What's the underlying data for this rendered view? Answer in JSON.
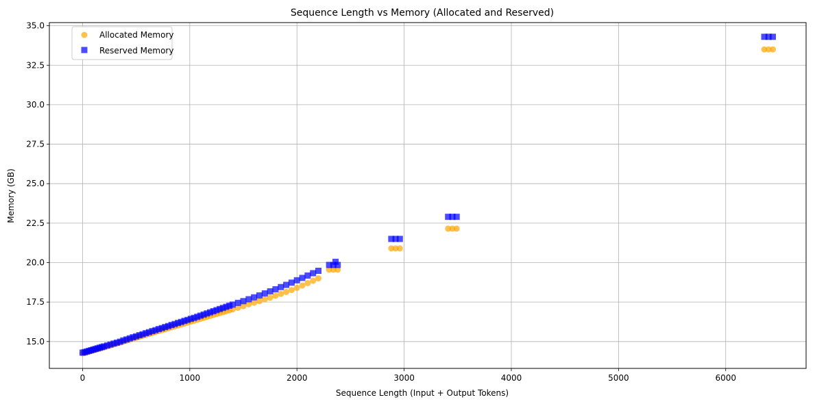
{
  "chart_data": {
    "type": "scatter",
    "title": "Sequence Length vs Memory (Allocated and Reserved)",
    "xlabel": "Sequence Length (Input + Output Tokens)",
    "ylabel": "Memory (GB)",
    "xlim": [
      -310,
      6750
    ],
    "ylim": [
      13.3,
      35.2
    ],
    "xticks": [
      0,
      1000,
      2000,
      3000,
      4000,
      5000,
      6000
    ],
    "yticks": [
      15.0,
      17.5,
      20.0,
      22.5,
      25.0,
      27.5,
      30.0,
      32.5,
      35.0
    ],
    "grid": true,
    "legend_position": "top-left",
    "series": [
      {
        "name": "Allocated Memory",
        "marker": "circle",
        "color": "#FFA500",
        "points": [
          [
            0,
            14.25
          ],
          [
            20,
            14.28
          ],
          [
            40,
            14.32
          ],
          [
            60,
            14.36
          ],
          [
            80,
            14.4
          ],
          [
            100,
            14.44
          ],
          [
            120,
            14.48
          ],
          [
            140,
            14.52
          ],
          [
            160,
            14.56
          ],
          [
            180,
            14.6
          ],
          [
            200,
            14.64
          ],
          [
            230,
            14.7
          ],
          [
            260,
            14.76
          ],
          [
            290,
            14.82
          ],
          [
            320,
            14.88
          ],
          [
            350,
            14.94
          ],
          [
            380,
            15.0
          ],
          [
            410,
            15.06
          ],
          [
            440,
            15.12
          ],
          [
            470,
            15.18
          ],
          [
            500,
            15.24
          ],
          [
            530,
            15.3
          ],
          [
            560,
            15.36
          ],
          [
            590,
            15.42
          ],
          [
            620,
            15.48
          ],
          [
            650,
            15.54
          ],
          [
            680,
            15.6
          ],
          [
            710,
            15.66
          ],
          [
            740,
            15.72
          ],
          [
            770,
            15.78
          ],
          [
            800,
            15.84
          ],
          [
            830,
            15.9
          ],
          [
            860,
            15.96
          ],
          [
            890,
            16.02
          ],
          [
            920,
            16.08
          ],
          [
            950,
            16.14
          ],
          [
            980,
            16.2
          ],
          [
            1010,
            16.26
          ],
          [
            1040,
            16.32
          ],
          [
            1070,
            16.38
          ],
          [
            1100,
            16.44
          ],
          [
            1130,
            16.5
          ],
          [
            1160,
            16.56
          ],
          [
            1190,
            16.62
          ],
          [
            1220,
            16.68
          ],
          [
            1250,
            16.74
          ],
          [
            1280,
            16.8
          ],
          [
            1310,
            16.86
          ],
          [
            1340,
            16.92
          ],
          [
            1370,
            16.98
          ],
          [
            1400,
            17.04
          ],
          [
            1450,
            17.14
          ],
          [
            1500,
            17.24
          ],
          [
            1550,
            17.36
          ],
          [
            1600,
            17.46
          ],
          [
            1650,
            17.56
          ],
          [
            1700,
            17.68
          ],
          [
            1750,
            17.78
          ],
          [
            1800,
            17.9
          ],
          [
            1850,
            18.02
          ],
          [
            1900,
            18.14
          ],
          [
            1950,
            18.26
          ],
          [
            2000,
            18.4
          ],
          [
            2050,
            18.55
          ],
          [
            2100,
            18.7
          ],
          [
            2150,
            18.85
          ],
          [
            2200,
            19.0
          ],
          [
            2300,
            19.55
          ],
          [
            2340,
            19.55
          ],
          [
            2380,
            19.55
          ],
          [
            2880,
            20.9
          ],
          [
            2920,
            20.9
          ],
          [
            2960,
            20.9
          ],
          [
            3410,
            22.15
          ],
          [
            3450,
            22.15
          ],
          [
            3490,
            22.15
          ],
          [
            6360,
            33.5
          ],
          [
            6400,
            33.5
          ],
          [
            6440,
            33.5
          ]
        ]
      },
      {
        "name": "Reserved Memory",
        "marker": "square",
        "color": "#0000FF",
        "points": [
          [
            0,
            14.3
          ],
          [
            20,
            14.33
          ],
          [
            40,
            14.37
          ],
          [
            60,
            14.41
          ],
          [
            80,
            14.45
          ],
          [
            100,
            14.49
          ],
          [
            120,
            14.53
          ],
          [
            140,
            14.57
          ],
          [
            160,
            14.61
          ],
          [
            180,
            14.65
          ],
          [
            200,
            14.69
          ],
          [
            230,
            14.75
          ],
          [
            260,
            14.81
          ],
          [
            290,
            14.87
          ],
          [
            320,
            14.93
          ],
          [
            350,
            14.99
          ],
          [
            380,
            15.07
          ],
          [
            410,
            15.13
          ],
          [
            440,
            15.2
          ],
          [
            470,
            15.27
          ],
          [
            500,
            15.33
          ],
          [
            530,
            15.4
          ],
          [
            560,
            15.46
          ],
          [
            590,
            15.53
          ],
          [
            620,
            15.59
          ],
          [
            650,
            15.66
          ],
          [
            680,
            15.72
          ],
          [
            710,
            15.79
          ],
          [
            740,
            15.85
          ],
          [
            770,
            15.92
          ],
          [
            800,
            15.98
          ],
          [
            830,
            16.05
          ],
          [
            860,
            16.11
          ],
          [
            890,
            16.18
          ],
          [
            920,
            16.24
          ],
          [
            950,
            16.31
          ],
          [
            980,
            16.37
          ],
          [
            1010,
            16.44
          ],
          [
            1040,
            16.5
          ],
          [
            1070,
            16.57
          ],
          [
            1100,
            16.64
          ],
          [
            1130,
            16.71
          ],
          [
            1160,
            16.78
          ],
          [
            1190,
            16.85
          ],
          [
            1220,
            16.92
          ],
          [
            1250,
            16.99
          ],
          [
            1280,
            17.06
          ],
          [
            1310,
            17.13
          ],
          [
            1340,
            17.2
          ],
          [
            1370,
            17.27
          ],
          [
            1400,
            17.34
          ],
          [
            1450,
            17.45
          ],
          [
            1500,
            17.56
          ],
          [
            1550,
            17.68
          ],
          [
            1600,
            17.8
          ],
          [
            1650,
            17.92
          ],
          [
            1700,
            18.05
          ],
          [
            1750,
            18.18
          ],
          [
            1800,
            18.31
          ],
          [
            1850,
            18.45
          ],
          [
            1900,
            18.59
          ],
          [
            1950,
            18.73
          ],
          [
            2000,
            18.88
          ],
          [
            2050,
            19.03
          ],
          [
            2100,
            19.18
          ],
          [
            2150,
            19.33
          ],
          [
            2200,
            19.48
          ],
          [
            2300,
            19.85
          ],
          [
            2340,
            19.85
          ],
          [
            2380,
            19.85
          ],
          [
            2360,
            20.05
          ],
          [
            2880,
            21.5
          ],
          [
            2920,
            21.5
          ],
          [
            2960,
            21.5
          ],
          [
            3410,
            22.9
          ],
          [
            3450,
            22.9
          ],
          [
            3490,
            22.9
          ],
          [
            6360,
            34.3
          ],
          [
            6400,
            34.3
          ],
          [
            6440,
            34.3
          ]
        ]
      }
    ]
  }
}
